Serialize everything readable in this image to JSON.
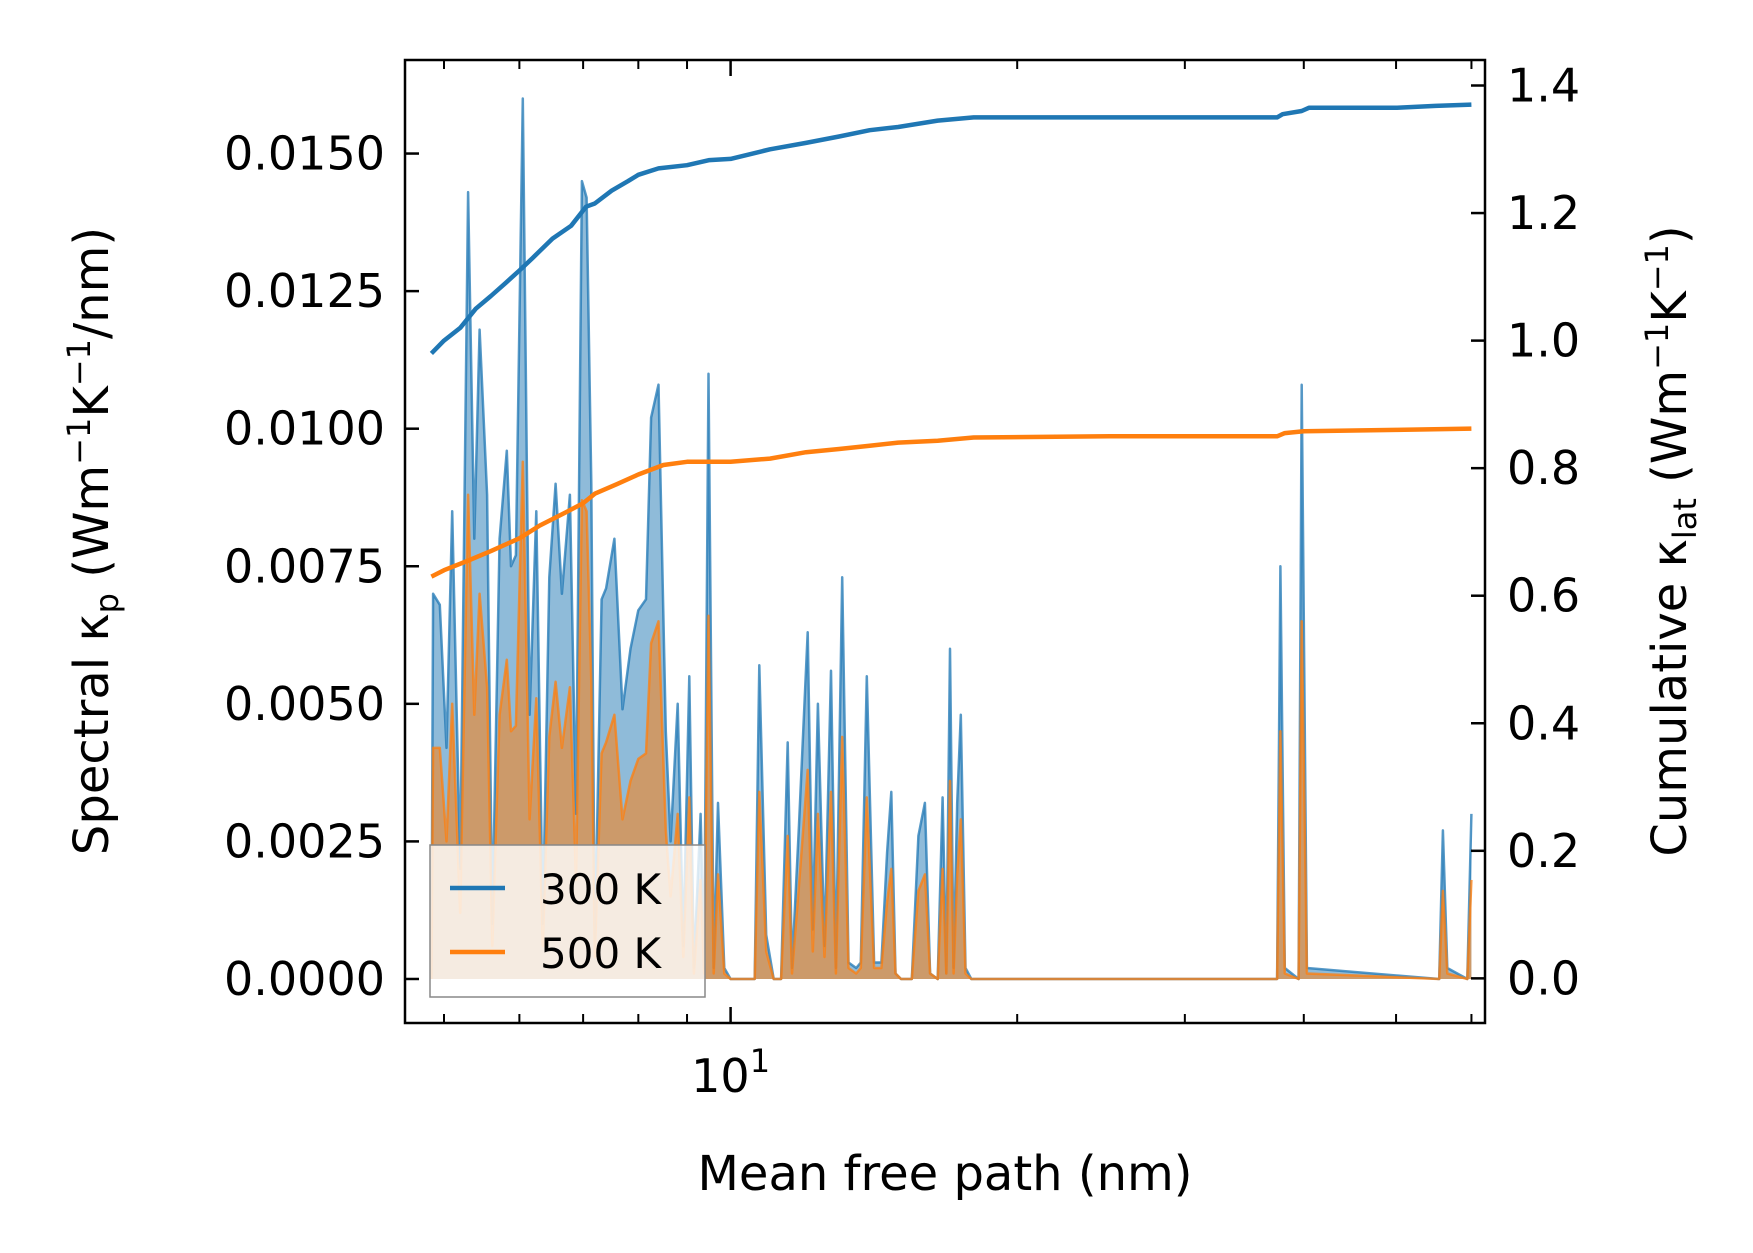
{
  "chart_data": {
    "type": "line",
    "xscale": "log",
    "xlim": [
      4.55,
      62
    ],
    "xlabel": "Mean free path (nm)",
    "x_major_tick": {
      "value": 10,
      "label_base": "10",
      "label_exp": "1"
    },
    "x_minor_ticks": [
      5,
      6,
      7,
      8,
      9,
      20,
      30,
      40,
      50,
      60
    ],
    "left_axis": {
      "label_parts": {
        "a": "Spectral κ",
        "b": "p",
        "c": " (Wm",
        "d": "−1",
        "e": "K",
        "f": "−1",
        "g": "/nm)"
      },
      "ylim": [
        -0.0008,
        0.0167
      ],
      "ticks": [
        0.0,
        0.0025,
        0.005,
        0.0075,
        0.01,
        0.0125,
        0.015
      ],
      "tick_labels": [
        "0.0000",
        "0.0025",
        "0.0050",
        "0.0075",
        "0.0100",
        "0.0125",
        "0.0150"
      ]
    },
    "right_axis": {
      "label_parts": {
        "a": "Cumulative κ",
        "b": "lat",
        "c": " (Wm",
        "d": "−1",
        "e": "K",
        "f": "−1",
        "g": ")"
      },
      "ylim": [
        -0.07,
        1.44
      ],
      "ticks": [
        0.0,
        0.2,
        0.4,
        0.6,
        0.8,
        1.0,
        1.2,
        1.4
      ],
      "tick_labels": [
        "0.0",
        "0.2",
        "0.4",
        "0.6",
        "0.8",
        "1.0",
        "1.2",
        "1.4"
      ]
    },
    "legend": {
      "position": "lower-left",
      "entries": [
        "300 K",
        "500 K"
      ]
    },
    "series": [
      {
        "name": "300 K",
        "color": "#1f77b4",
        "spectral": [
          [
            4.85,
            0
          ],
          [
            4.87,
            0.007
          ],
          [
            4.95,
            0.0068
          ],
          [
            5.03,
            0.0042
          ],
          [
            5.1,
            0.0085
          ],
          [
            5.2,
            0.002
          ],
          [
            5.3,
            0.0143
          ],
          [
            5.38,
            0.008
          ],
          [
            5.45,
            0.0118
          ],
          [
            5.55,
            0.0088
          ],
          [
            5.62,
            0.001
          ],
          [
            5.72,
            0.008
          ],
          [
            5.82,
            0.0096
          ],
          [
            5.88,
            0.0075
          ],
          [
            5.95,
            0.0077
          ],
          [
            6.05,
            0.016
          ],
          [
            6.15,
            0.0048
          ],
          [
            6.25,
            0.0085
          ],
          [
            6.35,
            0.001
          ],
          [
            6.45,
            0.0073
          ],
          [
            6.55,
            0.009
          ],
          [
            6.65,
            0.007
          ],
          [
            6.78,
            0.0088
          ],
          [
            6.88,
            0.003
          ],
          [
            6.98,
            0.0145
          ],
          [
            7.06,
            0.0142
          ],
          [
            7.14,
            0.009
          ],
          [
            7.2,
            0.0006
          ],
          [
            7.32,
            0.0069
          ],
          [
            7.4,
            0.0071
          ],
          [
            7.55,
            0.008
          ],
          [
            7.7,
            0.0049
          ],
          [
            7.85,
            0.006
          ],
          [
            8.0,
            0.0067
          ],
          [
            8.15,
            0.0069
          ],
          [
            8.25,
            0.0102
          ],
          [
            8.4,
            0.0108
          ],
          [
            8.55,
            0.0045
          ],
          [
            8.65,
            0.0025
          ],
          [
            8.8,
            0.005
          ],
          [
            8.92,
            0.0006
          ],
          [
            9.05,
            0.0055
          ],
          [
            9.15,
            0.0002
          ],
          [
            9.3,
            0.003
          ],
          [
            9.38,
            0.0002
          ],
          [
            9.48,
            0.011
          ],
          [
            9.6,
            0.0002
          ],
          [
            9.7,
            0.0032
          ],
          [
            9.85,
            0.0002
          ],
          [
            10.0,
            0
          ],
          [
            10.6,
            0
          ],
          [
            10.72,
            0.0057
          ],
          [
            10.9,
            0.0008
          ],
          [
            11.1,
            0
          ],
          [
            11.3,
            0
          ],
          [
            11.48,
            0.0043
          ],
          [
            11.6,
            0.0002
          ],
          [
            11.8,
            0.0028
          ],
          [
            12.05,
            0.0063
          ],
          [
            12.2,
            0.0009
          ],
          [
            12.35,
            0.005
          ],
          [
            12.55,
            0.0006
          ],
          [
            12.75,
            0.0056
          ],
          [
            12.9,
            0.0002
          ],
          [
            13.1,
            0.0073
          ],
          [
            13.3,
            0.0003
          ],
          [
            13.55,
            0.0002
          ],
          [
            13.7,
            0.0003
          ],
          [
            13.9,
            0.0055
          ],
          [
            14.15,
            0.0003
          ],
          [
            14.4,
            0.0003
          ],
          [
            14.6,
            0.0023
          ],
          [
            14.75,
            0.0034
          ],
          [
            14.9,
            0.0001
          ],
          [
            15.1,
            0
          ],
          [
            15.5,
            0
          ],
          [
            15.75,
            0.0026
          ],
          [
            16.0,
            0.0032
          ],
          [
            16.2,
            0.0001
          ],
          [
            16.5,
            0
          ],
          [
            16.7,
            0.0033
          ],
          [
            16.85,
            0.0001
          ],
          [
            17.0,
            0.006
          ],
          [
            17.15,
            0.0002
          ],
          [
            17.3,
            0.0032
          ],
          [
            17.45,
            0.0048
          ],
          [
            17.65,
            0.0002
          ],
          [
            17.9,
            0
          ],
          [
            37.5,
            0
          ],
          [
            37.8,
            0.0075
          ],
          [
            38.2,
            0.0002
          ],
          [
            39.5,
            0
          ],
          [
            39.8,
            0.0108
          ],
          [
            40.3,
            0.0002
          ],
          [
            55.5,
            0
          ],
          [
            56.0,
            0.0027
          ],
          [
            56.6,
            0.0002
          ],
          [
            59.4,
            0
          ],
          [
            60.0,
            0.003
          ]
        ],
        "cumulative": [
          [
            4.85,
            0.98
          ],
          [
            5.0,
            1.0
          ],
          [
            5.2,
            1.02
          ],
          [
            5.4,
            1.05
          ],
          [
            5.6,
            1.07
          ],
          [
            5.8,
            1.09
          ],
          [
            6.0,
            1.11
          ],
          [
            6.2,
            1.13
          ],
          [
            6.5,
            1.16
          ],
          [
            6.8,
            1.18
          ],
          [
            7.05,
            1.21
          ],
          [
            7.2,
            1.215
          ],
          [
            7.5,
            1.235
          ],
          [
            7.8,
            1.25
          ],
          [
            8.0,
            1.26
          ],
          [
            8.4,
            1.27
          ],
          [
            9.0,
            1.275
          ],
          [
            9.5,
            1.283
          ],
          [
            10.0,
            1.285
          ],
          [
            11.0,
            1.3
          ],
          [
            12.0,
            1.31
          ],
          [
            13.0,
            1.32
          ],
          [
            14.0,
            1.33
          ],
          [
            15.0,
            1.335
          ],
          [
            16.5,
            1.345
          ],
          [
            18.0,
            1.35
          ],
          [
            25.0,
            1.35
          ],
          [
            37.5,
            1.35
          ],
          [
            38.0,
            1.355
          ],
          [
            39.8,
            1.36
          ],
          [
            40.5,
            1.365
          ],
          [
            50.0,
            1.365
          ],
          [
            55.0,
            1.368
          ],
          [
            60.0,
            1.37
          ]
        ]
      },
      {
        "name": "500 K",
        "color": "#ff7f0e",
        "spectral": [
          [
            4.85,
            0
          ],
          [
            4.87,
            0.0042
          ],
          [
            4.95,
            0.0042
          ],
          [
            5.03,
            0.0025
          ],
          [
            5.1,
            0.005
          ],
          [
            5.2,
            0.0012
          ],
          [
            5.3,
            0.0088
          ],
          [
            5.38,
            0.0048
          ],
          [
            5.45,
            0.007
          ],
          [
            5.55,
            0.0053
          ],
          [
            5.62,
            0.0006
          ],
          [
            5.72,
            0.0048
          ],
          [
            5.82,
            0.0058
          ],
          [
            5.88,
            0.0045
          ],
          [
            5.95,
            0.0046
          ],
          [
            6.05,
            0.0094
          ],
          [
            6.15,
            0.0029
          ],
          [
            6.25,
            0.0051
          ],
          [
            6.35,
            0.0006
          ],
          [
            6.45,
            0.0044
          ],
          [
            6.55,
            0.0054
          ],
          [
            6.65,
            0.0042
          ],
          [
            6.78,
            0.0053
          ],
          [
            6.88,
            0.0018
          ],
          [
            6.98,
            0.0087
          ],
          [
            7.06,
            0.0085
          ],
          [
            7.14,
            0.0054
          ],
          [
            7.2,
            0.0004
          ],
          [
            7.32,
            0.0041
          ],
          [
            7.4,
            0.0043
          ],
          [
            7.55,
            0.0048
          ],
          [
            7.7,
            0.0029
          ],
          [
            7.85,
            0.0036
          ],
          [
            8.0,
            0.004
          ],
          [
            8.15,
            0.0041
          ],
          [
            8.25,
            0.0061
          ],
          [
            8.4,
            0.0065
          ],
          [
            8.55,
            0.0027
          ],
          [
            8.65,
            0.0015
          ],
          [
            8.8,
            0.003
          ],
          [
            8.92,
            0.0004
          ],
          [
            9.05,
            0.0033
          ],
          [
            9.15,
            0.0001
          ],
          [
            9.3,
            0.0018
          ],
          [
            9.38,
            0.0001
          ],
          [
            9.48,
            0.0066
          ],
          [
            9.6,
            0.0001
          ],
          [
            9.7,
            0.0019
          ],
          [
            9.85,
            0.0001
          ],
          [
            10.0,
            0
          ],
          [
            10.6,
            0
          ],
          [
            10.72,
            0.0034
          ],
          [
            10.9,
            0.0005
          ],
          [
            11.1,
            0
          ],
          [
            11.3,
            0
          ],
          [
            11.48,
            0.0026
          ],
          [
            11.6,
            0.0001
          ],
          [
            11.8,
            0.0017
          ],
          [
            12.05,
            0.0038
          ],
          [
            12.2,
            0.0005
          ],
          [
            12.35,
            0.003
          ],
          [
            12.55,
            0.0004
          ],
          [
            12.75,
            0.0034
          ],
          [
            12.9,
            0.0001
          ],
          [
            13.1,
            0.0044
          ],
          [
            13.3,
            0.0002
          ],
          [
            13.55,
            0.0001
          ],
          [
            13.7,
            0.0002
          ],
          [
            13.9,
            0.0033
          ],
          [
            14.15,
            0.0002
          ],
          [
            14.4,
            0.0002
          ],
          [
            14.6,
            0.0014
          ],
          [
            14.75,
            0.002
          ],
          [
            14.9,
            0.0001
          ],
          [
            15.1,
            0
          ],
          [
            15.5,
            0
          ],
          [
            15.75,
            0.0016
          ],
          [
            16.0,
            0.0019
          ],
          [
            16.2,
            0.0001
          ],
          [
            16.5,
            0
          ],
          [
            16.7,
            0.002
          ],
          [
            16.85,
            0.0001
          ],
          [
            17.0,
            0.0036
          ],
          [
            17.15,
            0.0001
          ],
          [
            17.3,
            0.0019
          ],
          [
            17.45,
            0.0029
          ],
          [
            17.65,
            0.0001
          ],
          [
            17.9,
            0
          ],
          [
            37.5,
            0
          ],
          [
            37.8,
            0.0045
          ],
          [
            38.2,
            0.0001
          ],
          [
            39.5,
            0
          ],
          [
            39.8,
            0.0065
          ],
          [
            40.3,
            0.0001
          ],
          [
            55.5,
            0
          ],
          [
            56.0,
            0.0016
          ],
          [
            56.6,
            0.0001
          ],
          [
            59.4,
            0
          ],
          [
            60.0,
            0.0018
          ]
        ],
        "cumulative": [
          [
            4.85,
            0.63
          ],
          [
            5.0,
            0.64
          ],
          [
            5.3,
            0.655
          ],
          [
            5.6,
            0.67
          ],
          [
            6.0,
            0.69
          ],
          [
            6.3,
            0.71
          ],
          [
            6.7,
            0.73
          ],
          [
            7.0,
            0.745
          ],
          [
            7.2,
            0.76
          ],
          [
            7.6,
            0.775
          ],
          [
            8.0,
            0.79
          ],
          [
            8.5,
            0.805
          ],
          [
            9.0,
            0.81
          ],
          [
            10.0,
            0.81
          ],
          [
            11.0,
            0.815
          ],
          [
            12.0,
            0.825
          ],
          [
            13.0,
            0.83
          ],
          [
            14.0,
            0.835
          ],
          [
            15.0,
            0.84
          ],
          [
            16.5,
            0.843
          ],
          [
            18.0,
            0.848
          ],
          [
            25.0,
            0.85
          ],
          [
            37.5,
            0.85
          ],
          [
            38.2,
            0.855
          ],
          [
            40.0,
            0.858
          ],
          [
            50.0,
            0.86
          ],
          [
            60.0,
            0.862
          ]
        ]
      }
    ]
  }
}
